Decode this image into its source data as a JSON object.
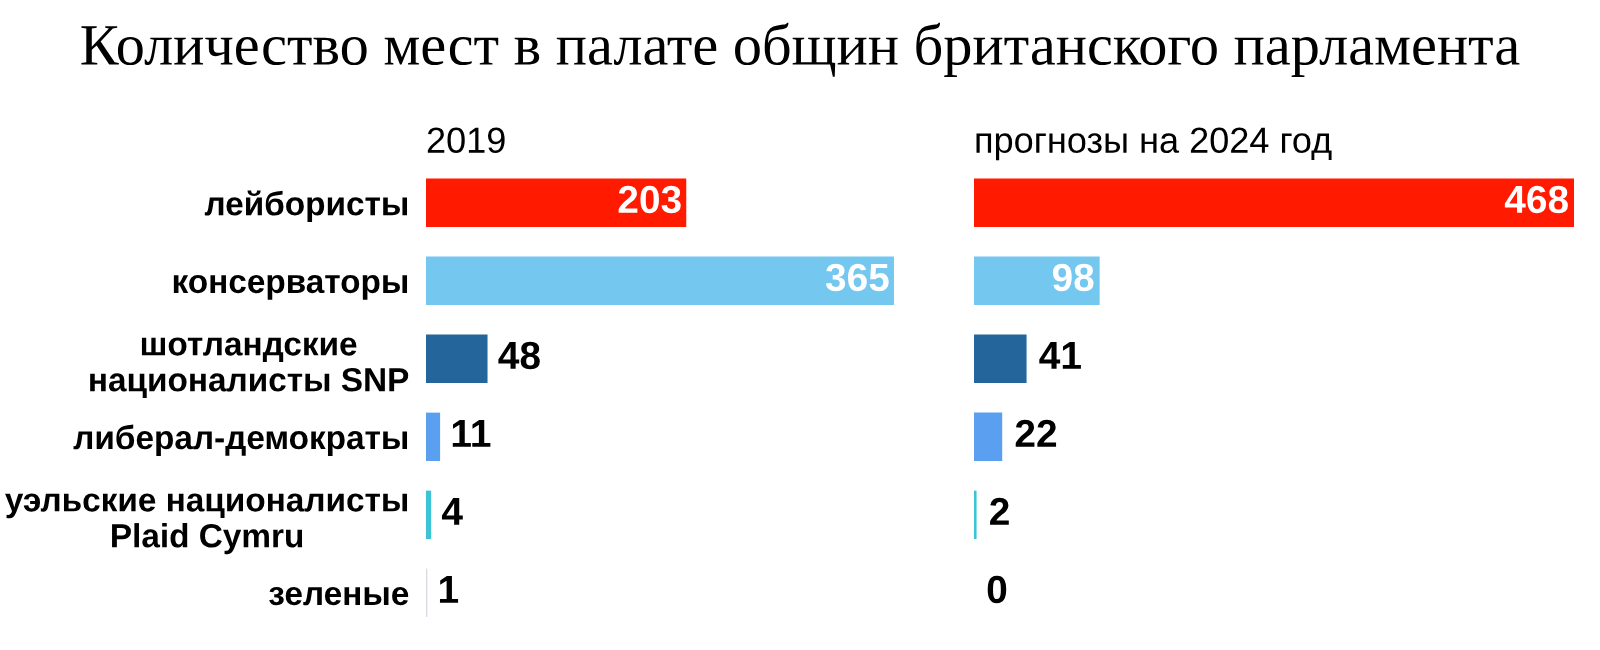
{
  "chart_data": [
    {
      "type": "bar",
      "orientation": "horizontal",
      "title": "Количество мест в палате общин британского парламента",
      "subtitle": "2019",
      "categories": [
        "лейбористы",
        "консерваторы",
        "шотландские\nнационалисты SNP",
        "либерал-демократы",
        "уэльские националисты\nPlaid Cymru",
        "зеленые"
      ],
      "values": [
        203,
        365,
        48,
        11,
        4,
        1
      ],
      "colors": [
        "#ff1a00",
        "#74c7ee",
        "#24669c",
        "#5b9ff0",
        "#3cc3d6",
        "#d9d9e6"
      ],
      "data_labels": true,
      "tick_labels": "y",
      "grid": false,
      "legend": false
    },
    {
      "type": "bar",
      "orientation": "horizontal",
      "subtitle": "прогнозы на 2024 год",
      "categories": [
        null,
        null,
        null,
        null,
        null,
        null
      ],
      "values": [
        468,
        98,
        41,
        22,
        2,
        0
      ],
      "colors": [
        "#ff1a00",
        "#74c7ee",
        "#24669c",
        "#5b9ff0",
        "#3cc3d6",
        "#d9d9e6"
      ],
      "data_labels": true,
      "tick_labels": false,
      "grid": false,
      "legend": false
    }
  ]
}
